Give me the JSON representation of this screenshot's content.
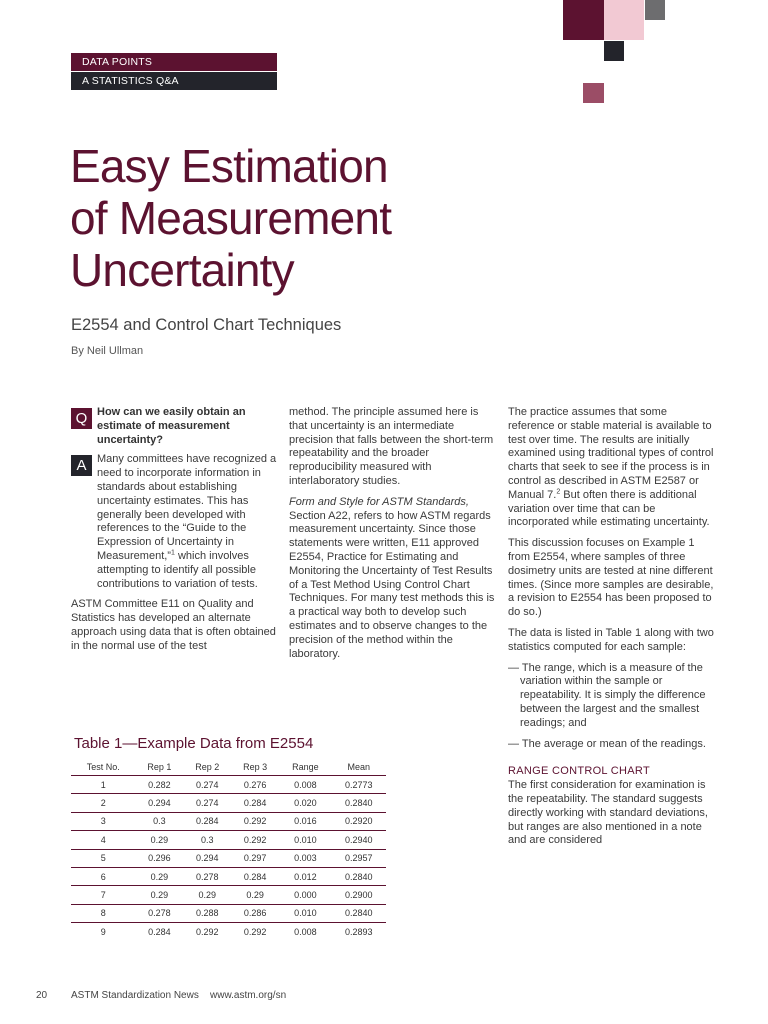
{
  "colors": {
    "accent": "#5c1230",
    "dark": "#23242b",
    "pink": "#f2c9d3",
    "gray": "#6d6d6f",
    "rose": "#9b4d66"
  },
  "header": {
    "section": "DATA POINTS",
    "subsection": "A STATISTICS Q&A"
  },
  "article": {
    "title_lines": [
      "Easy Estimation",
      "of Measurement",
      "Uncertainty"
    ],
    "subtitle": "E2554 and Control Chart Techniques",
    "byline": "By Neil Ullman"
  },
  "col1": {
    "q_letter": "Q",
    "question": "How can we easily obtain an estimate of measurement uncertainty?",
    "a_letter": "A",
    "answer_p1_start": "Many committees have recognized a need to incorporate information in standards about establishing uncertainty estimates. This has generally been developed with references to the “Guide to the Expression of Uncertainty in Measurement,”",
    "answer_p1_sup": "1",
    "answer_p1_end": " which involves attempting to identify all possible contributions to variation of tests.",
    "p2": "ASTM Committee E11 on Quality and Statistics has developed an alternate approach using data that is often obtained in the normal use of the test"
  },
  "col2": {
    "p1": "method. The principle assumed here is that uncertainty is an intermediate precision that falls between the short-term repeatability and the broader reproducibility measured with interlaboratory studies.",
    "p2_italic": "Form and Style for ASTM Standards,",
    "p2_rest": " Section A22, refers to how ASTM regards measurement uncertainty. Since those statements were written, E11 approved E2554, Practice for Estimating and Monitoring the Uncertainty of Test Results of a Test Method Using Control Chart Techniques. For many test methods this is a practical way both to develop such estimates and to observe changes to the precision of the method within the laboratory."
  },
  "col3": {
    "p1_start": "The practice assumes that some reference or stable material is available to test over time. The results are initially examined using traditional types of control charts that seek to see if the process is in control as described in ASTM E2587 or Manual 7.",
    "p1_sup": "2",
    "p1_end": " But often there is additional variation over time that can be incorporated while estimating uncertainty.",
    "p2": "This discussion focuses on Example 1 from E2554, where samples of three dosimetry units are tested at nine different times. (Since more samples are desirable, a revision to E2554 has been proposed to do so.)",
    "p3": "The data is listed in Table 1 along with two statistics computed for each sample:",
    "dash1": "— The range, which is a measure of the variation within the sample or repeatability. It is simply the difference between the largest and the smallest readings; and",
    "dash2": "— The average or mean of the readings.",
    "heading": "RANGE CONTROL CHART",
    "p4": "The first consideration for examination is the repeatability. The standard suggests directly working with standard deviations, but ranges are also mentioned in a note and are considered"
  },
  "table1": {
    "caption": "Table 1—Example Data from E2554",
    "headers": [
      "Test No.",
      "Rep 1",
      "Rep 2",
      "Rep 3",
      "Range",
      "Mean"
    ],
    "rows": [
      [
        "1",
        "0.282",
        "0.274",
        "0.276",
        "0.008",
        "0.2773"
      ],
      [
        "2",
        "0.294",
        "0.274",
        "0.284",
        "0.020",
        "0.2840"
      ],
      [
        "3",
        "0.3",
        "0.284",
        "0.292",
        "0.016",
        "0.2920"
      ],
      [
        "4",
        "0.29",
        "0.3",
        "0.292",
        "0.010",
        "0.2940"
      ],
      [
        "5",
        "0.296",
        "0.294",
        "0.297",
        "0.003",
        "0.2957"
      ],
      [
        "6",
        "0.29",
        "0.278",
        "0.284",
        "0.012",
        "0.2840"
      ],
      [
        "7",
        "0.29",
        "0.29",
        "0.29",
        "0.000",
        "0.2900"
      ],
      [
        "8",
        "0.278",
        "0.288",
        "0.286",
        "0.010",
        "0.2840"
      ],
      [
        "9",
        "0.284",
        "0.292",
        "0.292",
        "0.008",
        "0.2893"
      ]
    ]
  },
  "footer": {
    "page_number": "20",
    "publication": "ASTM Standardization News",
    "url": "www.astm.org/sn"
  }
}
